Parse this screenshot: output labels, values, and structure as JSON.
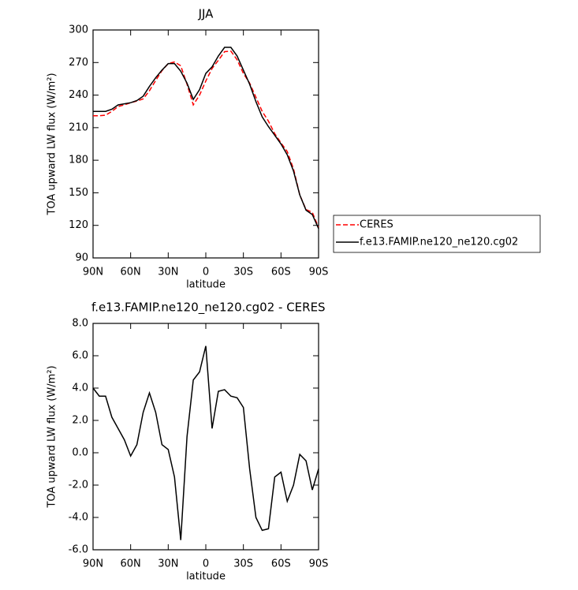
{
  "chart_data": [
    {
      "type": "line",
      "title": "JJA",
      "xlabel": "latitude",
      "ylabel": "TOA upward LW flux (W/m²)",
      "x": [
        90,
        85,
        80,
        75,
        70,
        65,
        60,
        55,
        50,
        45,
        40,
        35,
        30,
        25,
        20,
        15,
        10,
        5,
        0,
        -5,
        -10,
        -15,
        -20,
        -25,
        -30,
        -35,
        -40,
        -45,
        -50,
        -55,
        -60,
        -65,
        -70,
        -75,
        -80,
        -85,
        -90
      ],
      "series": [
        {
          "name": "CERES",
          "color": "#ff0000",
          "dash": true,
          "values": [
            221,
            221,
            221.5,
            225,
            229.5,
            231,
            233,
            234.5,
            236.5,
            244,
            253.5,
            262.5,
            269,
            270.5,
            267,
            250,
            231,
            240,
            253,
            264.5,
            272,
            280,
            280.5,
            272.5,
            260,
            251,
            238,
            225,
            216,
            204.5,
            196,
            188,
            172,
            148,
            134.5,
            132,
            118
          ]
        },
        {
          "name": "f.e13.FAMIP.ne120_ne120.cg02",
          "color": "#000000",
          "dash": false,
          "values": [
            225,
            225,
            225,
            227,
            231,
            232,
            233,
            235,
            239,
            248,
            256,
            263,
            269,
            269,
            262,
            251,
            236,
            245,
            260,
            266,
            276,
            284,
            284,
            276,
            263,
            250,
            234,
            220,
            211,
            203,
            195,
            185,
            170,
            148,
            134,
            130,
            117
          ]
        }
      ],
      "xlim": [
        90,
        -90
      ],
      "xticks": [
        {
          "value": 90,
          "label": "90N"
        },
        {
          "value": 60,
          "label": "60N"
        },
        {
          "value": 30,
          "label": "30N"
        },
        0,
        {
          "value": -30,
          "label": "30S"
        },
        {
          "value": -60,
          "label": "60S"
        },
        {
          "value": -90,
          "label": "90S"
        }
      ],
      "ylim": [
        90,
        300
      ],
      "yticks": [
        90,
        120,
        150,
        180,
        210,
        240,
        270,
        300
      ],
      "legend": "right",
      "grid": false
    },
    {
      "type": "line",
      "title": "f.e13.FAMIP.ne120_ne120.cg02 - CERES",
      "xlabel": "latitude",
      "ylabel": "TOA upward LW flux (W/m²)",
      "x": [
        90,
        85,
        80,
        75,
        70,
        65,
        60,
        55,
        50,
        45,
        40,
        35,
        30,
        25,
        20,
        15,
        10,
        5,
        0,
        -5,
        -10,
        -15,
        -20,
        -25,
        -30,
        -35,
        -40,
        -45,
        -50,
        -55,
        -60,
        -65,
        -70,
        -75,
        -80,
        -85,
        -90
      ],
      "series": [
        {
          "color": "#000000",
          "dash": false,
          "values": [
            4.0,
            3.5,
            3.5,
            2.2,
            1.5,
            0.8,
            -0.2,
            0.5,
            2.5,
            3.7,
            2.5,
            0.5,
            0.2,
            -1.5,
            -5.4,
            1.0,
            4.5,
            5.0,
            6.6,
            1.5,
            3.8,
            3.9,
            3.5,
            3.4,
            2.8,
            -1.0,
            -4.0,
            -4.8,
            -4.7,
            -1.5,
            -1.2,
            -3.0,
            -2.0,
            -0.1,
            -0.5,
            -2.3,
            -1.0
          ]
        }
      ],
      "xlim": [
        90,
        -90
      ],
      "xticks": [
        {
          "value": 90,
          "label": "90N"
        },
        {
          "value": 60,
          "label": "60N"
        },
        {
          "value": 30,
          "label": "30N"
        },
        0,
        {
          "value": -30,
          "label": "30S"
        },
        {
          "value": -60,
          "label": "60S"
        },
        {
          "value": -90,
          "label": "90S"
        }
      ],
      "ylim": [
        -6,
        8
      ],
      "yticks": [
        {
          "value": 8,
          "label": "8.0"
        },
        {
          "value": 6,
          "label": "6.0"
        },
        {
          "value": 4,
          "label": "4.0"
        },
        {
          "value": 2,
          "label": "2.0"
        },
        {
          "value": 0,
          "label": "0.0"
        },
        {
          "value": -2,
          "label": "-2.0"
        },
        {
          "value": -4,
          "label": "-4.0"
        },
        {
          "value": -6,
          "label": "-6.0"
        }
      ],
      "grid": false
    }
  ]
}
